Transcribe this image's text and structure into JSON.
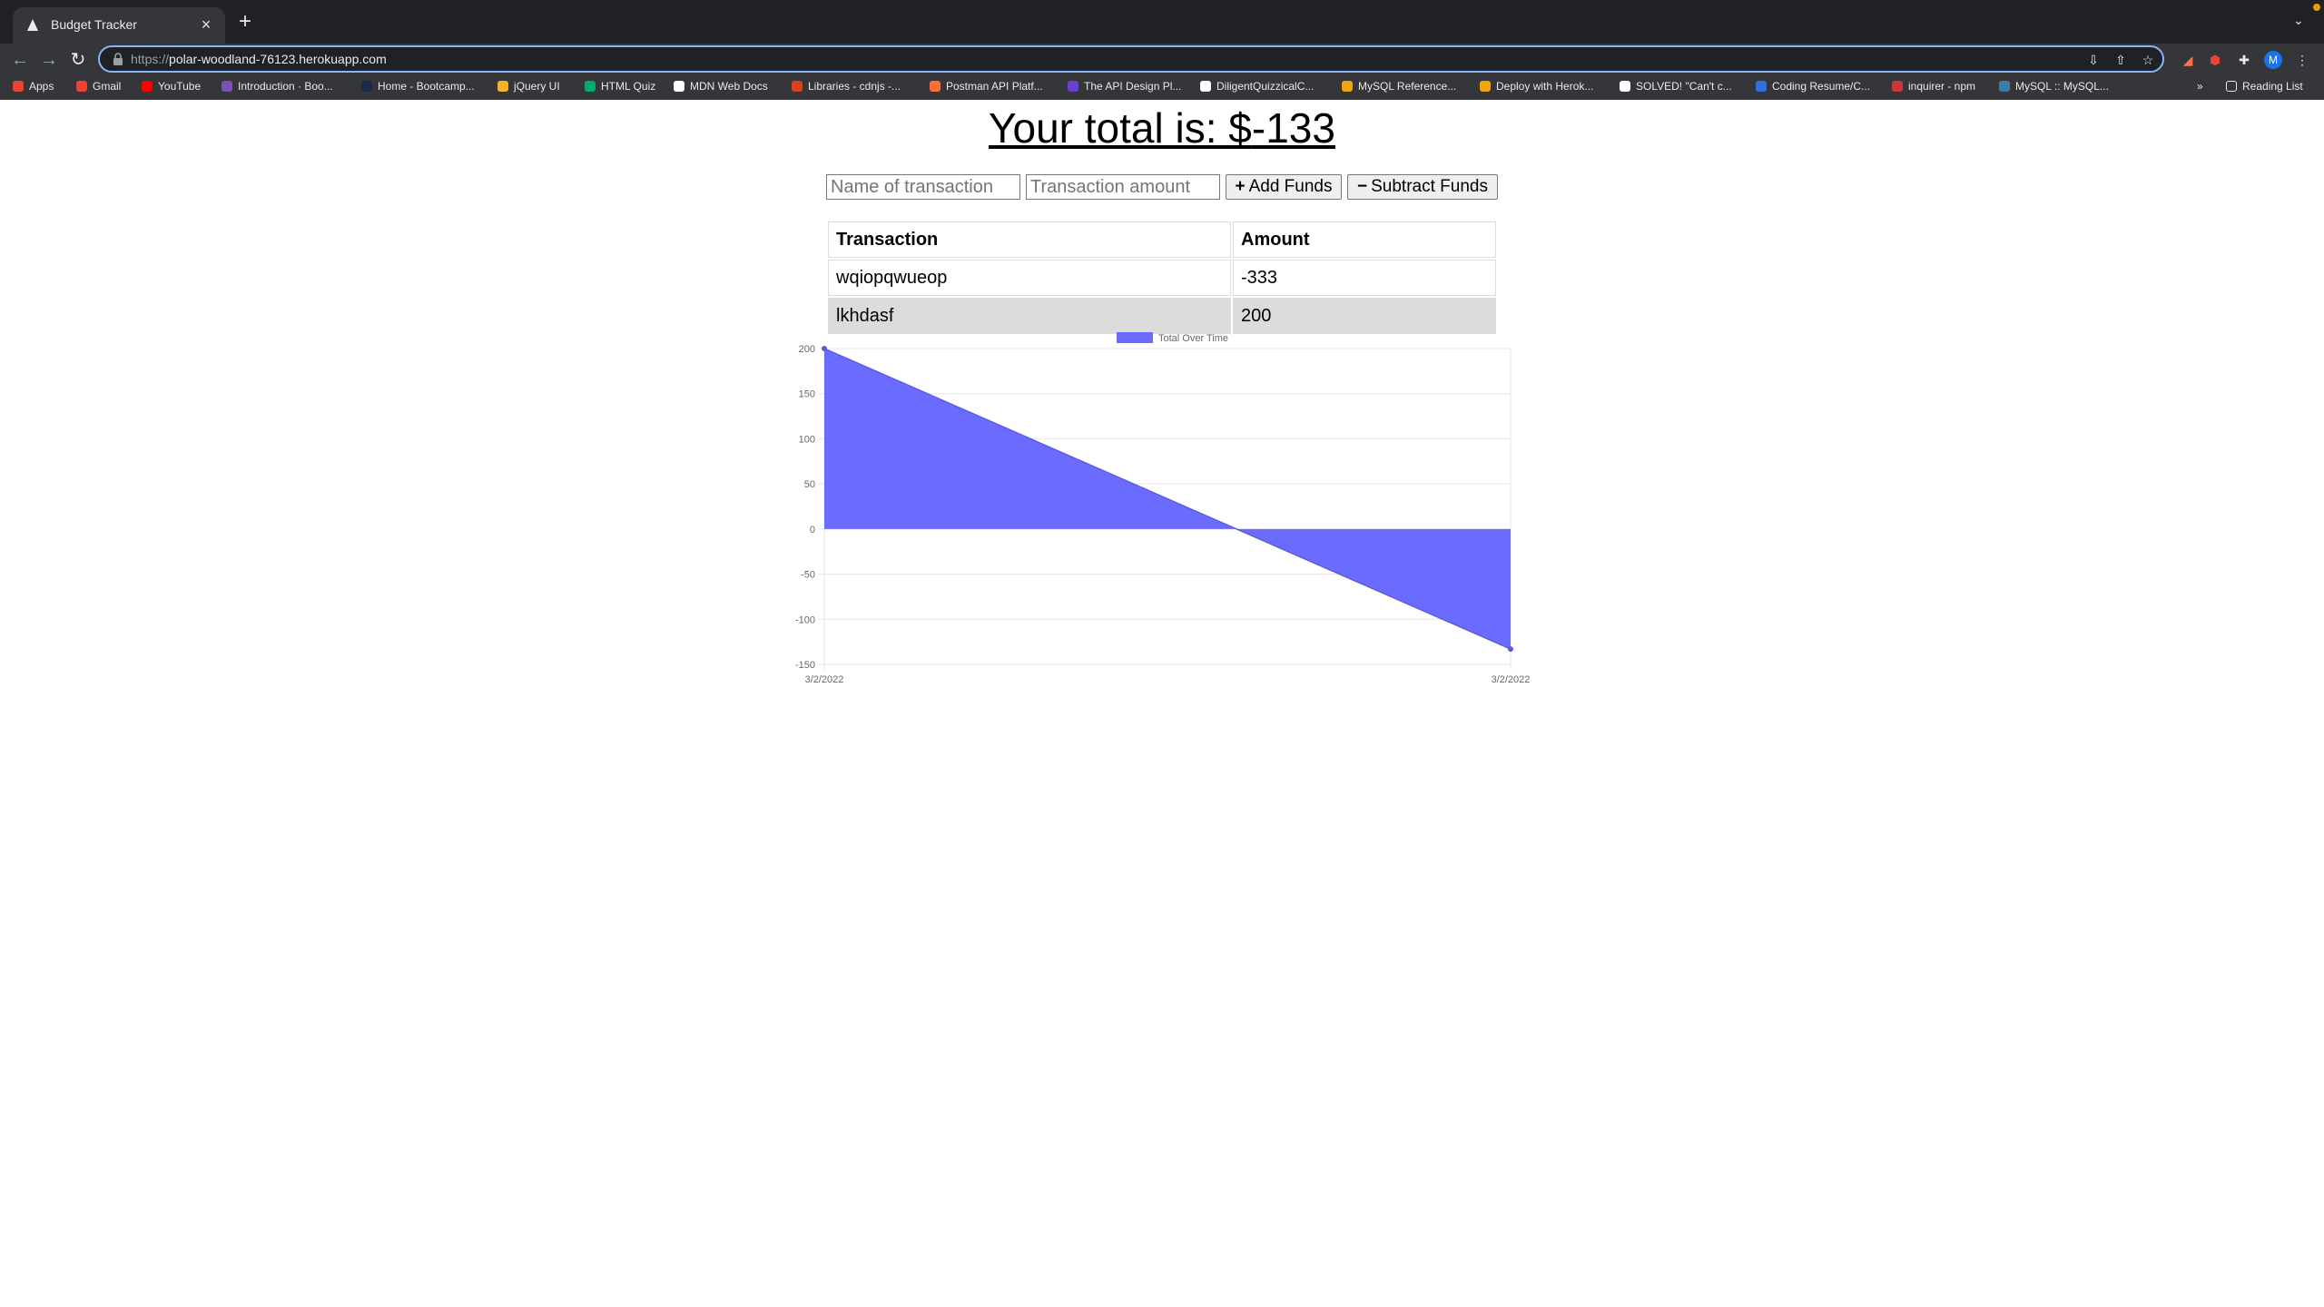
{
  "browser": {
    "tab_title": "Budget Tracker",
    "url_scheme": "https://",
    "url_host": "polar-woodland-76123.herokuapp.com",
    "reading_list": "Reading List",
    "profile_initial": "M"
  },
  "bookmarks": [
    {
      "label": "Apps",
      "color": "#ea4335"
    },
    {
      "label": "Gmail",
      "color": "#ea4335"
    },
    {
      "label": "YouTube",
      "color": "#ff0000"
    },
    {
      "label": "Introduction · Boo...",
      "color": "#7952b3"
    },
    {
      "label": "Home - Bootcamp...",
      "color": "#1a2b4c"
    },
    {
      "label": "jQuery UI",
      "color": "#f5b12a"
    },
    {
      "label": "HTML Quiz",
      "color": "#04aa6d"
    },
    {
      "label": "MDN Web Docs",
      "color": "#ffffff"
    },
    {
      "label": "Libraries - cdnjs -...",
      "color": "#d9411e"
    },
    {
      "label": "Postman API Platf...",
      "color": "#ff6c37"
    },
    {
      "label": "The API Design Pl...",
      "color": "#6b3fd4"
    },
    {
      "label": "DiligentQuizzicalC...",
      "color": "#ffffff"
    },
    {
      "label": "MySQL Reference...",
      "color": "#f0a30a"
    },
    {
      "label": "Deploy with Herok...",
      "color": "#f0a30a"
    },
    {
      "label": "SOLVED! \"Can't c...",
      "color": "#ffffff"
    },
    {
      "label": "Coding Resume/C...",
      "color": "#2f6fde"
    },
    {
      "label": "inquirer - npm",
      "color": "#cb3837"
    },
    {
      "label": "MySQL :: MySQL...",
      "color": "#4479a1"
    }
  ],
  "page": {
    "total_label": "Your total is: $",
    "total_value": "-133",
    "name_placeholder": "Name of transaction",
    "amount_placeholder": "Transaction amount",
    "add_label": "Add Funds",
    "subtract_label": "Subtract Funds",
    "table": {
      "headers": [
        "Transaction",
        "Amount"
      ],
      "rows": [
        [
          "wqiopqwueop",
          "-333"
        ],
        [
          "lkhdasf",
          "200"
        ]
      ]
    }
  },
  "chart_data": {
    "type": "area",
    "categories": [
      "3/2/2022",
      "3/2/2022"
    ],
    "series": [
      {
        "name": "Total Over Time",
        "values": [
          200,
          -133
        ]
      }
    ],
    "ylim": [
      -150,
      200
    ],
    "yticks": [
      200,
      150,
      100,
      50,
      0,
      -50,
      -100,
      -150
    ],
    "legend": "top",
    "grid": true,
    "color": "#6b6cff"
  }
}
